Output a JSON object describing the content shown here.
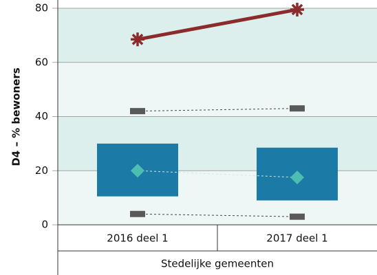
{
  "chart_data": {
    "type": "range",
    "y_label": "D4 – % bewoners",
    "categories": [
      "2016 deel 1",
      "2017 deel 1"
    ],
    "group": "Stedelijke gemeenten",
    "ylim": [
      0,
      80
    ],
    "yticks": [
      0,
      20,
      40,
      60,
      80
    ],
    "bands": [
      "#eef7f6",
      "#dcefed"
    ],
    "range": {
      "color": "#1b7aa6",
      "low": [
        10.5,
        9
      ],
      "high": [
        30,
        28.5
      ]
    },
    "series": [
      {
        "marker": "asterisk",
        "color": "#8b2b2b",
        "values": [
          68.5,
          79.5
        ]
      },
      {
        "marker": "dash",
        "color": "#595959",
        "values": [
          42,
          43
        ]
      },
      {
        "marker": "diamond",
        "color": "#4dbfb2",
        "values": [
          20,
          17.5
        ]
      },
      {
        "marker": "dash",
        "color": "#595959",
        "values": [
          4,
          3
        ]
      }
    ]
  }
}
